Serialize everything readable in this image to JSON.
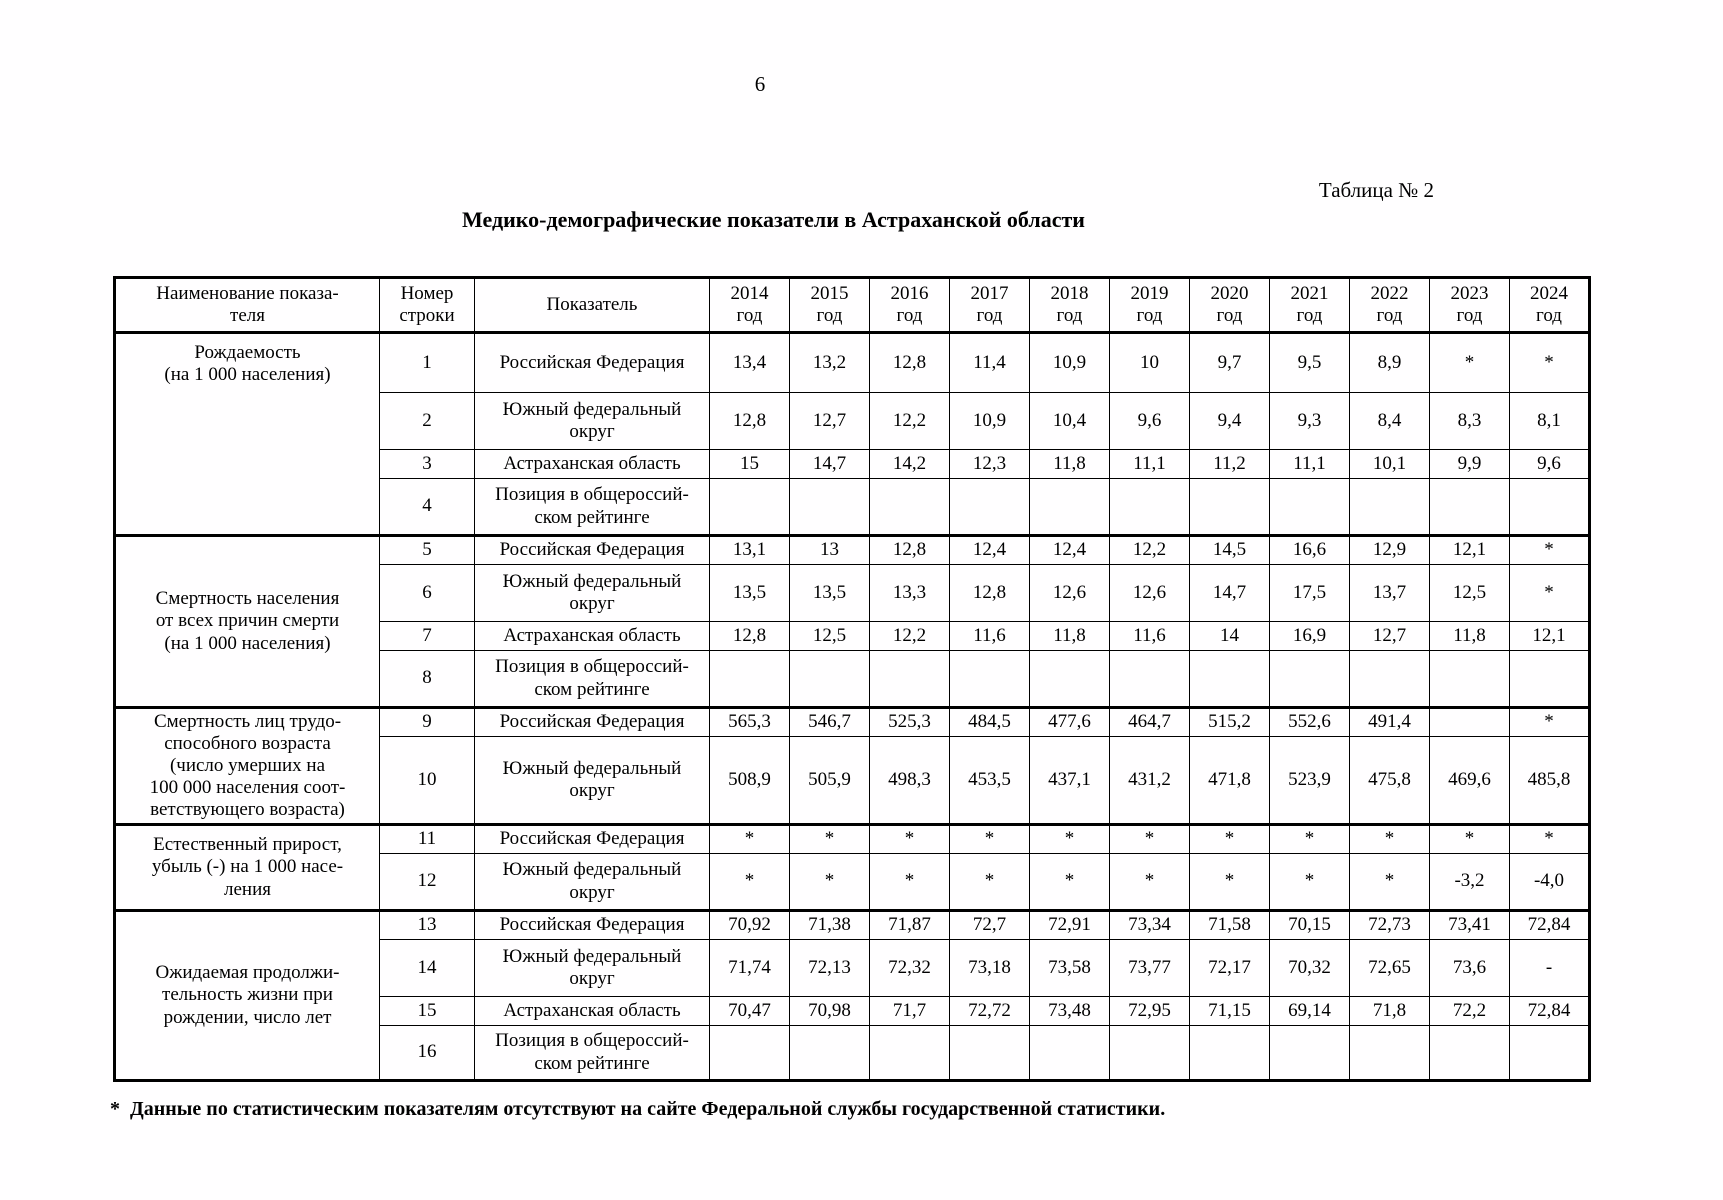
{
  "page": {
    "number": "6",
    "table_caption": "Таблица № 2",
    "title": "Медико-демографические показатели в Астраханской области",
    "footnote_marker": "*",
    "footnote_text": "Данные по статистическим показателям отсутствуют на сайте Федеральной службы государственной статистики."
  },
  "table": {
    "header": {
      "name": "Наименование показа-\nтеля",
      "row_number": "Номер\nстроки",
      "indicator": "Показатель",
      "years": [
        "2014\nгод",
        "2015\nгод",
        "2016\nгод",
        "2017\nгод",
        "2018\nгод",
        "2019\nгод",
        "2020\nгод",
        "2021\nгод",
        "2022\nгод",
        "2023\nгод",
        "2024\nгод"
      ]
    },
    "groups": [
      {
        "name": "Рождаемость\n(на 1 000 населения)",
        "rows": [
          {
            "num": "1",
            "indicator": "Российская Федерация",
            "values": [
              "13,4",
              "13,2",
              "12,8",
              "11,4",
              "10,9",
              "10",
              "9,7",
              "9,5",
              "8,9",
              "*",
              "*"
            ]
          },
          {
            "num": "2",
            "indicator": "Южный федеральный\nокруг",
            "values": [
              "12,8",
              "12,7",
              "12,2",
              "10,9",
              "10,4",
              "9,6",
              "9,4",
              "9,3",
              "8,4",
              "8,3",
              "8,1"
            ]
          },
          {
            "num": "3",
            "indicator": "Астраханская область",
            "values": [
              "15",
              "14,7",
              "14,2",
              "12,3",
              "11,8",
              "11,1",
              "11,2",
              "11,1",
              "10,1",
              "9,9",
              "9,6"
            ]
          },
          {
            "num": "4",
            "indicator": "Позиция в общероссий-\nском рейтинге",
            "values": [
              "",
              "",
              "",
              "",
              "",
              "",
              "",
              "",
              "",
              "",
              ""
            ]
          }
        ]
      },
      {
        "name": "Смертность населения\nот всех причин смерти\n(на 1 000 населения)",
        "rows": [
          {
            "num": "5",
            "indicator": "Российская Федерация",
            "values": [
              "13,1",
              "13",
              "12,8",
              "12,4",
              "12,4",
              "12,2",
              "14,5",
              "16,6",
              "12,9",
              "12,1",
              "*"
            ]
          },
          {
            "num": "6",
            "indicator": "Южный федеральный\nокруг",
            "values": [
              "13,5",
              "13,5",
              "13,3",
              "12,8",
              "12,6",
              "12,6",
              "14,7",
              "17,5",
              "13,7",
              "12,5",
              "*"
            ]
          },
          {
            "num": "7",
            "indicator": "Астраханская область",
            "values": [
              "12,8",
              "12,5",
              "12,2",
              "11,6",
              "11,8",
              "11,6",
              "14",
              "16,9",
              "12,7",
              "11,8",
              "12,1"
            ]
          },
          {
            "num": "8",
            "indicator": "Позиция в общероссий-\nском рейтинге",
            "values": [
              "",
              "",
              "",
              "",
              "",
              "",
              "",
              "",
              "",
              "",
              ""
            ]
          }
        ]
      },
      {
        "name": "Смертность лиц трудо-\nспособного возраста\n(число умерших на\n100 000 населения соот-\nветствующего возраста)",
        "rows": [
          {
            "num": "9",
            "indicator": "Российская Федерация",
            "values": [
              "565,3",
              "546,7",
              "525,3",
              "484,5",
              "477,6",
              "464,7",
              "515,2",
              "552,6",
              "491,4",
              "",
              "*"
            ]
          },
          {
            "num": "10",
            "indicator": "Южный федеральный\nокруг",
            "values": [
              "508,9",
              "505,9",
              "498,3",
              "453,5",
              "437,1",
              "431,2",
              "471,8",
              "523,9",
              "475,8",
              "469,6",
              "485,8"
            ]
          }
        ]
      },
      {
        "name": "Естественный прирост,\nубыль (-) на 1 000 насе-\nления",
        "rows": [
          {
            "num": "11",
            "indicator": "Российская Федерация",
            "values": [
              "*",
              "*",
              "*",
              "*",
              "*",
              "*",
              "*",
              "*",
              "*",
              "*",
              "*"
            ]
          },
          {
            "num": "12",
            "indicator": "Южный федеральный\nокруг",
            "values": [
              "*",
              "*",
              "*",
              "*",
              "*",
              "*",
              "*",
              "*",
              "*",
              "-3,2",
              "-4,0"
            ]
          }
        ]
      },
      {
        "name": "Ожидаемая продолжи-\nтельность жизни при\nрождении, число лет",
        "rows": [
          {
            "num": "13",
            "indicator": "Российская Федерация",
            "values": [
              "70,92",
              "71,38",
              "71,87",
              "72,7",
              "72,91",
              "73,34",
              "71,58",
              "70,15",
              "72,73",
              "73,41",
              "72,84"
            ]
          },
          {
            "num": "14",
            "indicator": "Южный федеральный\nокруг",
            "values": [
              "71,74",
              "72,13",
              "72,32",
              "73,18",
              "73,58",
              "73,77",
              "72,17",
              "70,32",
              "72,65",
              "73,6",
              "-"
            ]
          },
          {
            "num": "15",
            "indicator": "Астраханская область",
            "values": [
              "70,47",
              "70,98",
              "71,7",
              "72,72",
              "73,48",
              "72,95",
              "71,15",
              "69,14",
              "71,8",
              "72,2",
              "72,84"
            ]
          },
          {
            "num": "16",
            "indicator": "Позиция в общероссий-\nском рейтинге",
            "values": [
              "",
              "",
              "",
              "",
              "",
              "",
              "",
              "",
              "",
              "",
              ""
            ]
          }
        ]
      }
    ]
  }
}
